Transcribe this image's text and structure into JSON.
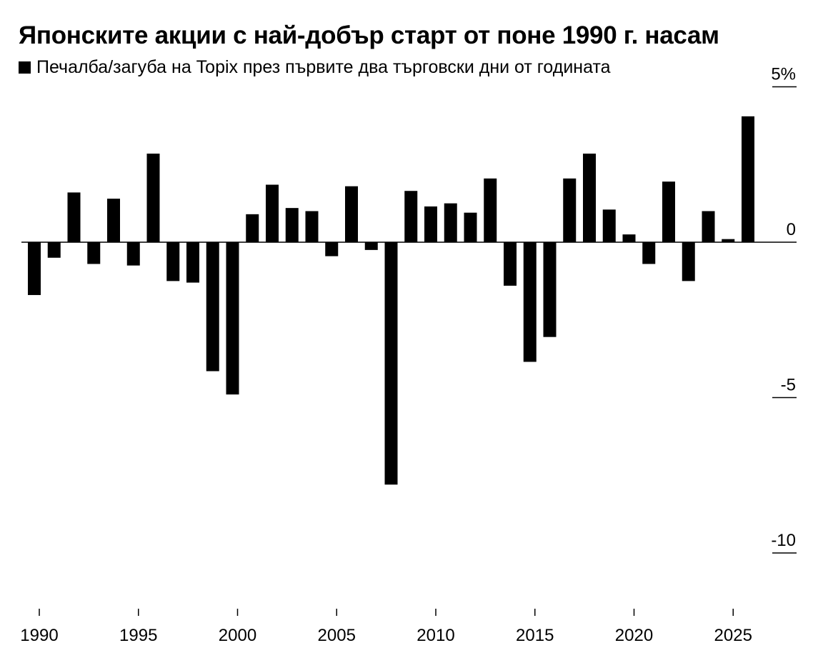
{
  "chart_data": {
    "type": "bar",
    "title": "Японските акции с най-добър старт от поне 1990 г. насам",
    "legend": [
      {
        "label": "Печалба/загуба на Topix през първите два търговски дни от годината",
        "color": "#000000"
      }
    ],
    "years": [
      1990,
      1991,
      1992,
      1993,
      1994,
      1995,
      1996,
      1997,
      1998,
      1999,
      2000,
      2001,
      2002,
      2003,
      2004,
      2005,
      2006,
      2007,
      2008,
      2009,
      2010,
      2011,
      2012,
      2013,
      2014,
      2015,
      2016,
      2017,
      2018,
      2019,
      2020,
      2021,
      2022,
      2023,
      2024,
      2025,
      2026
    ],
    "values": [
      -1.7,
      -0.5,
      1.6,
      -0.7,
      1.4,
      -0.75,
      2.85,
      -1.25,
      -1.3,
      -4.15,
      -4.9,
      0.9,
      1.85,
      1.1,
      1.0,
      -0.45,
      1.8,
      -0.25,
      -7.8,
      1.65,
      1.15,
      1.25,
      0.95,
      2.05,
      -1.4,
      -3.85,
      -3.05,
      2.05,
      2.85,
      1.05,
      0.25,
      -0.7,
      1.95,
      -1.25,
      1.0,
      0.1,
      4.05
    ],
    "x_tick_labels": [
      "1990",
      "1995",
      "2000",
      "2005",
      "2010",
      "2015",
      "2020",
      "2025"
    ],
    "y_tick_labels": [
      {
        "value": 5,
        "label": "5%"
      },
      {
        "value": 0,
        "label": "0"
      },
      {
        "value": -5,
        "label": "-5"
      },
      {
        "value": -10,
        "label": "-10"
      }
    ],
    "ylim": [
      -10.5,
      5
    ],
    "axis_position": "right",
    "grid": false,
    "legend_placement": "top-left",
    "bar_color": "#000000"
  }
}
